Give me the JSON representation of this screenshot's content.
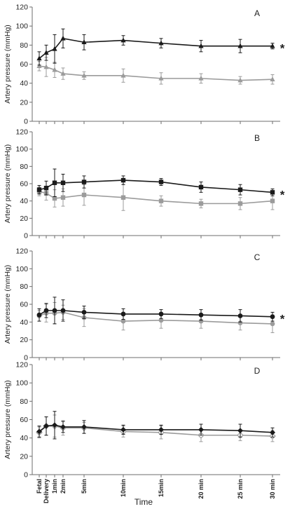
{
  "colors": {
    "dark": "#1a1a1a",
    "light": "#9b9b9b",
    "axis": "#6e6e6e"
  },
  "xlabel": "Time",
  "x_tick_labels": [
    "Fetal",
    "Delivery",
    "1min",
    "2min",
    "5min",
    "10min",
    "15min",
    "20 min",
    "25 min",
    "30 min"
  ],
  "chart_data": [
    {
      "type": "line",
      "panel_label": "A",
      "ylabel": "Artery pressure (mmHg)",
      "ylim": [
        0,
        120
      ],
      "yticks": [
        0,
        20,
        40,
        60,
        80,
        100,
        120
      ],
      "significance": "*",
      "categories": [
        "Fetal",
        "Delivery",
        "1min",
        "2min",
        "5min",
        "10min",
        "15min",
        "20 min",
        "25 min",
        "30 min"
      ],
      "series": [
        {
          "marker": "triangle",
          "color": "dark",
          "values": [
            66,
            72,
            76,
            87,
            83,
            85,
            82,
            79,
            79,
            79
          ],
          "errors": [
            7,
            8,
            15,
            10,
            8,
            5,
            5,
            6,
            7,
            3
          ]
        },
        {
          "marker": "triangle",
          "color": "light",
          "values": [
            58,
            57,
            54,
            50,
            48,
            48,
            45,
            45,
            43,
            44
          ],
          "errors": [
            5,
            10,
            8,
            6,
            4,
            7,
            6,
            5,
            4,
            5
          ]
        }
      ]
    },
    {
      "type": "line",
      "panel_label": "B",
      "ylabel": "Artery pressure (mmHg)",
      "ylim": [
        0,
        120
      ],
      "yticks": [
        0,
        20,
        40,
        60,
        80,
        100,
        120
      ],
      "significance": "*",
      "categories": [
        "Fetal",
        "Delivery",
        "1min",
        "2min",
        "5min",
        "10min",
        "15min",
        "20 min",
        "25 min",
        "30 min"
      ],
      "series": [
        {
          "marker": "square",
          "color": "dark",
          "values": [
            53,
            55,
            61,
            61,
            62,
            64,
            62,
            56,
            53,
            50
          ],
          "errors": [
            5,
            8,
            16,
            10,
            7,
            5,
            4,
            6,
            6,
            4
          ]
        },
        {
          "marker": "square",
          "color": "light",
          "values": [
            51,
            49,
            43,
            44,
            47,
            44,
            40,
            37,
            37,
            40
          ],
          "errors": [
            5,
            8,
            10,
            10,
            12,
            15,
            6,
            5,
            7,
            10
          ]
        }
      ]
    },
    {
      "type": "line",
      "panel_label": "C",
      "ylabel": "Artery pressure (mmHg)",
      "ylim": [
        0,
        120
      ],
      "yticks": [
        0,
        20,
        40,
        60,
        80,
        100,
        120
      ],
      "significance": "*",
      "categories": [
        "Fetal",
        "Delivery",
        "1min",
        "2min",
        "5min",
        "10min",
        "15min",
        "20 min",
        "25 min",
        "30 min"
      ],
      "series": [
        {
          "marker": "circle",
          "color": "dark",
          "values": [
            48,
            53,
            53,
            53,
            51,
            49,
            49,
            48,
            47,
            46
          ],
          "errors": [
            7,
            8,
            15,
            12,
            7,
            6,
            5,
            6,
            7,
            5
          ]
        },
        {
          "marker": "circle",
          "color": "light",
          "values": [
            47,
            50,
            50,
            51,
            45,
            41,
            42,
            41,
            39,
            38
          ],
          "errors": [
            6,
            10,
            12,
            8,
            10,
            10,
            9,
            8,
            8,
            10
          ]
        }
      ]
    },
    {
      "type": "line",
      "panel_label": "D",
      "ylabel": "Artery pressure (mmHg)",
      "ylim": [
        0,
        120
      ],
      "yticks": [
        0,
        20,
        40,
        60,
        80,
        100,
        120
      ],
      "significance": "",
      "categories": [
        "Fetal",
        "Delivery",
        "1min",
        "2min",
        "5min",
        "10min",
        "15min",
        "20 min",
        "25 min",
        "30 min"
      ],
      "series": [
        {
          "marker": "diamond",
          "color": "dark",
          "values": [
            47,
            53,
            54,
            52,
            52,
            49,
            49,
            49,
            48,
            46
          ],
          "errors": [
            6,
            10,
            15,
            6,
            7,
            5,
            5,
            6,
            7,
            5
          ]
        },
        {
          "marker": "diamond-open",
          "color": "light",
          "values": [
            46,
            53,
            53,
            51,
            51,
            47,
            46,
            43,
            43,
            42
          ],
          "errors": [
            6,
            10,
            12,
            8,
            6,
            6,
            7,
            7,
            6,
            6
          ]
        }
      ]
    }
  ]
}
